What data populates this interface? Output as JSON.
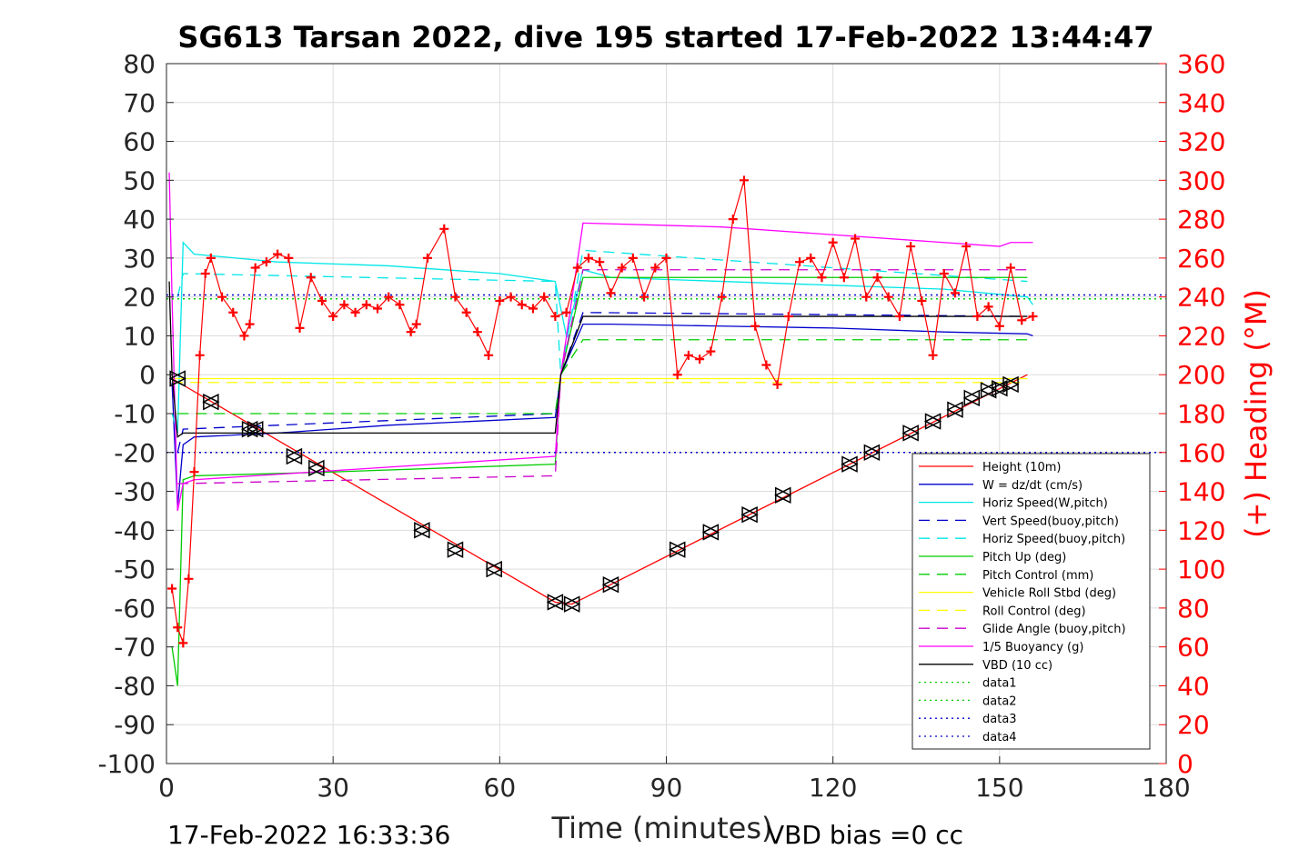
{
  "chart_data": {
    "type": "line",
    "title": "SG613 Tarsan 2022, dive 195 started 17-Feb-2022 13:44:47",
    "xlabel": "Time (minutes)",
    "ylabel_right": "(+) Heading (°M)",
    "xlim": [
      0,
      180
    ],
    "ylim": [
      -100,
      80
    ],
    "ylim_right": [
      0,
      360
    ],
    "xticks": [
      "0",
      "30",
      "60",
      "90",
      "120",
      "150",
      "180"
    ],
    "yticks": [
      "-100",
      "-90",
      "-80",
      "-70",
      "-60",
      "-50",
      "-40",
      "-30",
      "-20",
      "-10",
      "0",
      "10",
      "20",
      "30",
      "40",
      "50",
      "60",
      "70",
      "80"
    ],
    "yticks_right": [
      "0",
      "20",
      "40",
      "60",
      "80",
      "100",
      "120",
      "140",
      "160",
      "180",
      "200",
      "220",
      "240",
      "260",
      "280",
      "300",
      "320",
      "340",
      "360"
    ],
    "grid": true,
    "legend_position": "lower-right",
    "footer_left": "17-Feb-2022 16:33:36",
    "footer_right": "VBD bias =0 cc",
    "colors": {
      "right_axis": "#ff0000"
    },
    "series": [
      {
        "name": "Height (10m)",
        "color": "#ff0000",
        "dash": "",
        "x": [
          1,
          70,
          73,
          155
        ],
        "y": [
          -1,
          -58.5,
          -59,
          0
        ]
      },
      {
        "name": "W = dz/dt (cm/s)",
        "color": "#0000cc",
        "dash": "",
        "x": [
          1,
          2,
          3,
          5,
          20,
          40,
          70,
          71,
          75,
          80,
          100,
          120,
          140,
          155,
          156
        ],
        "y": [
          -2,
          -34,
          -18,
          -16,
          -15,
          -13,
          -11,
          0,
          13,
          13,
          12.5,
          12,
          11,
          10.5,
          10
        ]
      },
      {
        "name": "Horiz Speed(W,pitch)",
        "color": "#00e6e6",
        "dash": "",
        "x": [
          1,
          2,
          3,
          5,
          20,
          40,
          60,
          70,
          72,
          75,
          80,
          100,
          120,
          140,
          155,
          156
        ],
        "y": [
          -10,
          -15,
          34,
          31,
          29,
          28,
          26,
          24,
          10,
          27,
          25,
          24,
          23,
          22,
          20,
          18
        ]
      },
      {
        "name": "Vert Speed(buoy,pitch)",
        "color": "#0000cc",
        "dash": "12,8",
        "x": [
          2,
          3,
          70,
          71,
          75,
          155
        ],
        "y": [
          -20,
          -14,
          -10,
          0,
          16,
          15
        ]
      },
      {
        "name": "Horiz Speed(buoy,pitch)",
        "color": "#00e6e6",
        "dash": "12,8",
        "x": [
          2,
          3,
          70,
          71,
          75,
          155
        ],
        "y": [
          20,
          26,
          24,
          0,
          32,
          24
        ]
      },
      {
        "name": "Pitch Up (deg)",
        "color": "#00cc00",
        "dash": "",
        "x": [
          1,
          2,
          3,
          5,
          30,
          70,
          71,
          75,
          155
        ],
        "y": [
          -70,
          -80,
          -27,
          -26,
          -25,
          -23,
          0,
          25,
          25
        ]
      },
      {
        "name": "Pitch Control (mm)",
        "color": "#00cc00",
        "dash": "12,8",
        "x": [
          2,
          3,
          70,
          71,
          75,
          155
        ],
        "y": [
          -10,
          -10,
          -10,
          0,
          9,
          9
        ]
      },
      {
        "name": "Vehicle Roll Stbd (deg)",
        "color": "#ffff00",
        "dash": "",
        "x": [
          1,
          5,
          20,
          40,
          70,
          75,
          100,
          120,
          140,
          155
        ],
        "y": [
          -1,
          -1,
          -1,
          -1,
          -1,
          -1,
          -1,
          -1,
          -1,
          -1
        ]
      },
      {
        "name": "Roll Control (deg)",
        "color": "#ffff00",
        "dash": "12,8",
        "x": [
          1,
          155
        ],
        "y": [
          -2,
          -2
        ]
      },
      {
        "name": "Glide Angle (buoy,pitch)",
        "color": "#cc00cc",
        "dash": "12,8",
        "x": [
          2,
          3,
          70,
          71,
          75,
          155
        ],
        "y": [
          -28,
          -28,
          -26,
          0,
          27,
          27
        ]
      },
      {
        "name": "1/5 Buoyancy (g)",
        "color": "#ff00ff",
        "dash": "",
        "x": [
          0.5,
          1,
          2,
          3,
          5,
          70,
          71,
          75,
          100,
          120,
          150,
          152,
          155,
          156
        ],
        "y": [
          52,
          20,
          -35,
          -28,
          -27,
          -21,
          0,
          39,
          38,
          36,
          33,
          34,
          34,
          34
        ]
      },
      {
        "name": "VBD (10 cc)",
        "color": "#000000",
        "dash": "",
        "x": [
          0.5,
          1,
          2,
          3,
          70,
          71,
          75,
          155
        ],
        "y": [
          24,
          0,
          -16,
          -15,
          -15,
          0,
          15,
          15
        ]
      },
      {
        "name": "data1",
        "color": "#00cc00",
        "dash": "2,4",
        "x": [
          0,
          180
        ],
        "y": [
          19.5,
          19.5
        ]
      },
      {
        "name": "data2",
        "color": "#00cc00",
        "dash": "2,4",
        "x": [
          0,
          180
        ],
        "y": [
          19.5,
          19.5
        ]
      },
      {
        "name": "data3",
        "color": "#0000cc",
        "dash": "2,4",
        "x": [
          0,
          180
        ],
        "y": [
          20.5,
          20.5
        ]
      },
      {
        "name": "data4",
        "color": "#0000cc",
        "dash": "2,4",
        "x": [
          0,
          180
        ],
        "y": [
          -20,
          -20
        ]
      }
    ],
    "heading_series": {
      "name": "(+) Heading (°M)",
      "color": "#ff0000",
      "marker": "+",
      "x": [
        1,
        2,
        3,
        4,
        5,
        6,
        7,
        8,
        10,
        12,
        14,
        15,
        16,
        18,
        20,
        22,
        24,
        26,
        28,
        30,
        32,
        34,
        36,
        38,
        40,
        42,
        44,
        45,
        47,
        50,
        52,
        54,
        56,
        58,
        60,
        62,
        64,
        66,
        68,
        70,
        72,
        74,
        76,
        78,
        80,
        82,
        84,
        86,
        88,
        90,
        92,
        94,
        96,
        98,
        100,
        102,
        104,
        106,
        108,
        110,
        112,
        114,
        116,
        118,
        120,
        122,
        124,
        126,
        128,
        130,
        132,
        134,
        136,
        138,
        140,
        142,
        144,
        146,
        148,
        150,
        152,
        154,
        156
      ],
      "y": [
        90,
        70,
        62,
        95,
        150,
        210,
        252,
        260,
        240,
        232,
        220,
        226,
        255,
        258,
        262,
        260,
        224,
        250,
        238,
        230,
        236,
        232,
        236,
        234,
        240,
        236,
        222,
        226,
        260,
        275,
        240,
        232,
        222,
        210,
        238,
        240,
        236,
        234,
        240,
        230,
        232,
        255,
        260,
        258,
        242,
        255,
        260,
        240,
        255,
        260,
        200,
        210,
        208,
        212,
        240,
        280,
        300,
        225,
        205,
        195,
        230,
        258,
        260,
        250,
        268,
        250,
        270,
        240,
        250,
        240,
        230,
        266,
        238,
        210,
        252,
        242,
        266,
        230,
        235,
        225,
        255,
        228,
        230
      ]
    },
    "markers": {
      "name": "Height markers",
      "color": "#000000",
      "x": [
        2,
        8,
        15,
        16,
        23,
        27,
        46,
        52,
        59,
        70,
        73,
        80,
        92,
        98,
        105,
        111,
        123,
        127,
        134,
        138,
        142,
        145,
        148,
        150,
        152
      ],
      "y": [
        -1,
        -7,
        -14,
        -14,
        -21,
        -24,
        -40,
        -45,
        -50,
        -58.5,
        -59,
        -54,
        -45,
        -40.5,
        -36,
        -31,
        -23,
        -20,
        -15,
        -12,
        -9,
        -6,
        -4,
        -3.5,
        -2.5
      ]
    }
  }
}
